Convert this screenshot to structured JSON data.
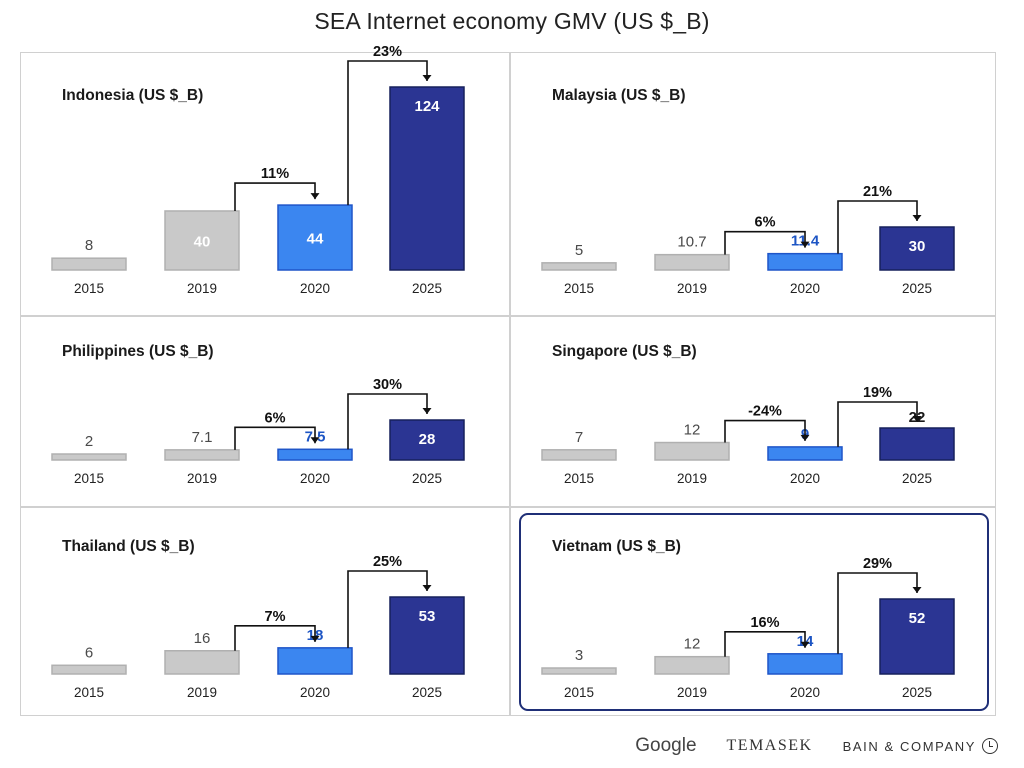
{
  "title": "SEA Internet economy GMV (US $_B)",
  "colors": {
    "y2015": "#c9c9c9",
    "y2019": "#c9c9c9",
    "y2020": "#3b86f0",
    "y2025": "#2b3593",
    "outline2020": "#1f55c8",
    "outline2025": "#16205c",
    "outline_grey": "#b0b0b0",
    "value_blue_text": "#1d55c4",
    "value_grey_text": "#4a4a4a",
    "highlight": "#1f2f77"
  },
  "chart_data": [
    {
      "type": "bar",
      "title": "Indonesia (US $_B)",
      "categories": [
        "2015",
        "2019",
        "2020",
        "2025"
      ],
      "values": [
        8,
        40,
        44,
        124
      ],
      "value_labels": [
        "8",
        "40",
        "44",
        "124"
      ],
      "growth": [
        {
          "label": "11%",
          "from": "2019",
          "to": "2020"
        },
        {
          "label": "23%",
          "from": "2020",
          "to": "2025"
        }
      ]
    },
    {
      "type": "bar",
      "title": "Malaysia (US $_B)",
      "categories": [
        "2015",
        "2019",
        "2020",
        "2025"
      ],
      "values": [
        5,
        10.7,
        11.4,
        30
      ],
      "value_labels": [
        "5",
        "10.7",
        "11.4",
        "30"
      ],
      "growth": [
        {
          "label": "6%",
          "from": "2019",
          "to": "2020"
        },
        {
          "label": "21%",
          "from": "2020",
          "to": "2025"
        }
      ]
    },
    {
      "type": "bar",
      "title": "Philippines (US $_B)",
      "categories": [
        "2015",
        "2019",
        "2020",
        "2025"
      ],
      "values": [
        2,
        7.1,
        7.5,
        28
      ],
      "value_labels": [
        "2",
        "7.1",
        "7.5",
        "28"
      ],
      "growth": [
        {
          "label": "6%",
          "from": "2019",
          "to": "2020"
        },
        {
          "label": "30%",
          "from": "2020",
          "to": "2025"
        }
      ]
    },
    {
      "type": "bar",
      "title": "Singapore (US $_B)",
      "categories": [
        "2015",
        "2019",
        "2020",
        "2025"
      ],
      "values": [
        7,
        12,
        9,
        22
      ],
      "value_labels": [
        "7",
        "12",
        "9",
        "22"
      ],
      "growth": [
        {
          "label": "-24%",
          "from": "2019",
          "to": "2020"
        },
        {
          "label": "19%",
          "from": "2020",
          "to": "2025"
        }
      ]
    },
    {
      "type": "bar",
      "title": "Thailand (US $_B)",
      "categories": [
        "2015",
        "2019",
        "2020",
        "2025"
      ],
      "values": [
        6,
        16,
        18,
        53
      ],
      "value_labels": [
        "6",
        "16",
        "18",
        "53"
      ],
      "growth": [
        {
          "label": "7%",
          "from": "2019",
          "to": "2020"
        },
        {
          "label": "25%",
          "from": "2020",
          "to": "2025"
        }
      ]
    },
    {
      "type": "bar",
      "title": "Vietnam (US $_B)",
      "categories": [
        "2015",
        "2019",
        "2020",
        "2025"
      ],
      "values": [
        3,
        12,
        14,
        52
      ],
      "value_labels": [
        "3",
        "12",
        "14",
        "52"
      ],
      "growth": [
        {
          "label": "16%",
          "from": "2019",
          "to": "2020"
        },
        {
          "label": "29%",
          "from": "2020",
          "to": "2025"
        }
      ],
      "highlighted": true
    }
  ],
  "footer": {
    "google": "Google",
    "temasek": "TEMASEK",
    "bain": "BAIN & COMPANY"
  }
}
